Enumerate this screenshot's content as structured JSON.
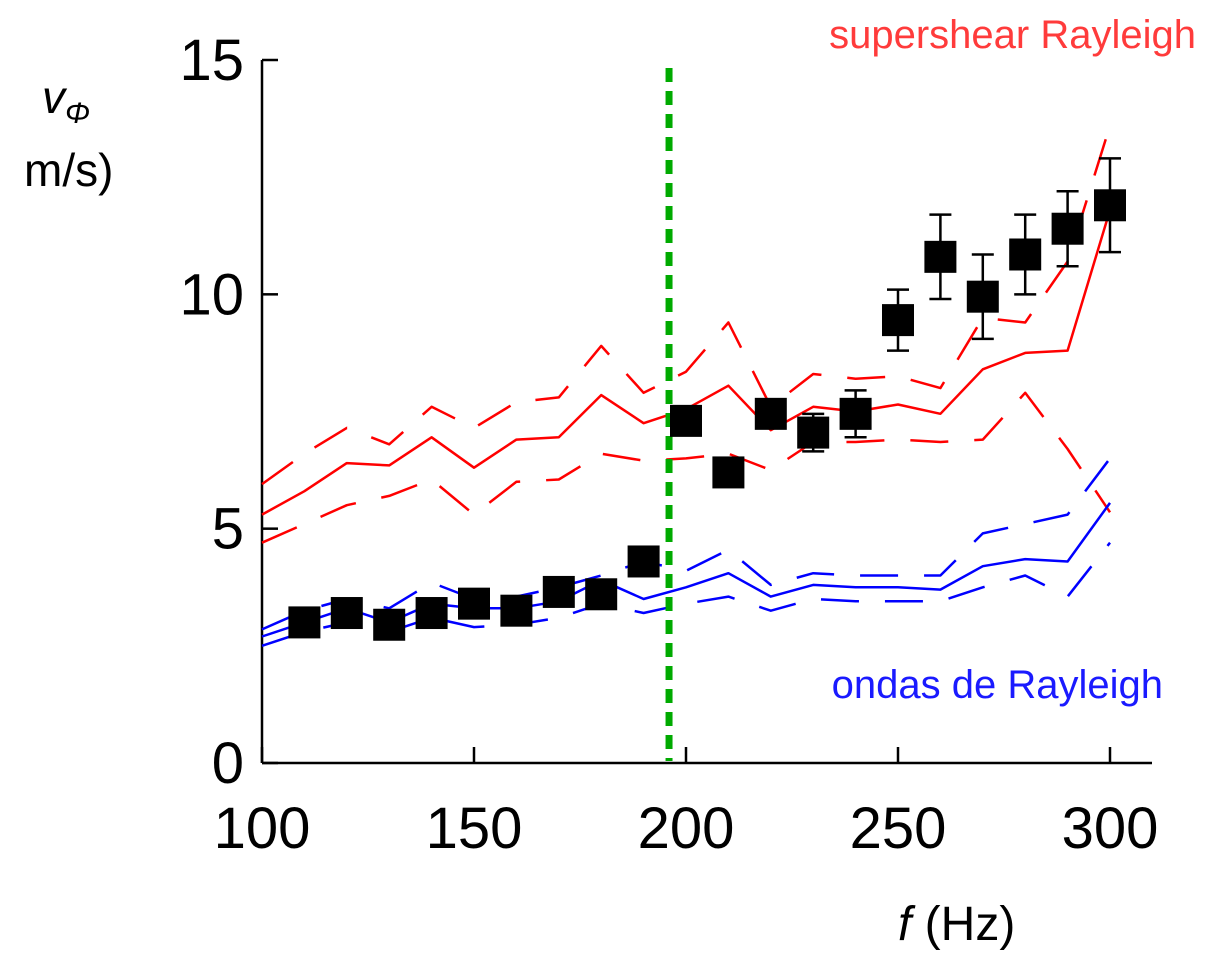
{
  "chart_data": {
    "type": "line",
    "ylabel_symbol": "v",
    "ylabel_subscript": "Φ",
    "ylabel_unit": "m/s)",
    "xlabel_symbol": "f",
    "xlabel_unit": " (Hz)",
    "xlim": [
      100,
      300
    ],
    "ylim": [
      0,
      15
    ],
    "xticks": [
      100,
      150,
      200,
      250,
      300
    ],
    "yticks": [
      0,
      5,
      10,
      15
    ],
    "annotations": {
      "red": "supershear Rayleigh",
      "blue": "ondas de Rayleigh"
    },
    "colors": {
      "red": "#ff0000",
      "blue": "#0000ff",
      "green": "#00aa00",
      "annot_red": "#ff3b3b",
      "annot_blue": "#1a1aff",
      "markers": "#000000"
    },
    "vline_x": 196,
    "markers": {
      "x": [
        110,
        120,
        130,
        140,
        150,
        160,
        170,
        180,
        190,
        200,
        210,
        220,
        230,
        240,
        250,
        260,
        270,
        280,
        290,
        300
      ],
      "y": [
        3.0,
        3.2,
        2.95,
        3.2,
        3.4,
        3.25,
        3.65,
        3.6,
        4.3,
        7.3,
        6.2,
        7.45,
        7.05,
        7.45,
        9.45,
        10.8,
        9.95,
        10.85,
        11.4,
        11.9
      ],
      "err": [
        null,
        null,
        null,
        null,
        null,
        null,
        null,
        null,
        null,
        null,
        null,
        null,
        0.4,
        0.5,
        0.65,
        0.9,
        0.9,
        0.85,
        0.8,
        1.0
      ]
    },
    "series": [
      {
        "color": "red",
        "dash": false,
        "x": [
          100,
          110,
          120,
          130,
          140,
          150,
          160,
          170,
          180,
          190,
          200,
          210,
          220,
          230,
          240,
          250,
          260,
          270,
          280,
          290,
          300
        ],
        "y": [
          5.3,
          5.8,
          6.4,
          6.35,
          6.95,
          6.3,
          6.9,
          6.95,
          7.85,
          7.25,
          7.55,
          8.05,
          7.1,
          7.6,
          7.5,
          7.65,
          7.45,
          8.4,
          8.75,
          8.8,
          11.8
        ]
      },
      {
        "color": "red",
        "dash": true,
        "x": [
          100,
          110,
          120,
          130,
          140,
          150,
          160,
          170,
          180,
          190,
          200,
          210,
          220,
          230,
          240,
          250,
          260,
          270,
          280,
          290,
          300
        ],
        "y": [
          5.95,
          6.6,
          7.15,
          6.8,
          7.6,
          7.15,
          7.7,
          7.8,
          8.9,
          7.9,
          8.35,
          9.4,
          7.6,
          8.3,
          8.2,
          8.25,
          8.0,
          9.5,
          9.4,
          10.7,
          13.6
        ]
      },
      {
        "color": "red",
        "dash": true,
        "x": [
          100,
          110,
          120,
          130,
          140,
          150,
          160,
          170,
          180,
          190,
          200,
          210,
          220,
          230,
          240,
          250,
          260,
          270,
          280,
          290,
          300
        ],
        "y": [
          4.7,
          5.1,
          5.5,
          5.7,
          6.05,
          5.3,
          6.0,
          6.05,
          6.6,
          6.45,
          6.5,
          6.6,
          6.25,
          6.85,
          6.85,
          6.9,
          6.85,
          6.9,
          7.9,
          6.7,
          5.35
        ]
      },
      {
        "color": "blue",
        "dash": false,
        "x": [
          100,
          110,
          120,
          130,
          140,
          150,
          160,
          170,
          180,
          190,
          200,
          210,
          220,
          230,
          240,
          250,
          260,
          270,
          280,
          290,
          300
        ],
        "y": [
          2.7,
          3.0,
          3.3,
          3.0,
          3.4,
          3.3,
          3.3,
          3.45,
          3.9,
          3.5,
          3.75,
          4.05,
          3.55,
          3.8,
          3.75,
          3.75,
          3.7,
          4.2,
          4.35,
          4.3,
          5.55
        ]
      },
      {
        "color": "blue",
        "dash": true,
        "x": [
          100,
          110,
          120,
          130,
          140,
          150,
          160,
          170,
          180,
          190,
          200,
          210,
          220,
          230,
          240,
          250,
          260,
          270,
          280,
          290,
          300
        ],
        "y": [
          2.85,
          3.25,
          3.5,
          3.3,
          3.85,
          3.5,
          3.55,
          3.75,
          4.0,
          4.3,
          4.1,
          4.55,
          3.8,
          4.05,
          4.0,
          4.0,
          4.0,
          4.9,
          5.1,
          5.3,
          6.5
        ]
      },
      {
        "color": "blue",
        "dash": true,
        "x": [
          100,
          110,
          120,
          130,
          140,
          150,
          160,
          170,
          180,
          190,
          200,
          210,
          220,
          230,
          240,
          250,
          260,
          270,
          280,
          290,
          300
        ],
        "y": [
          2.5,
          2.8,
          3.0,
          2.8,
          3.1,
          2.9,
          2.95,
          3.1,
          3.4,
          3.2,
          3.4,
          3.55,
          3.25,
          3.5,
          3.45,
          3.45,
          3.45,
          3.75,
          4.0,
          3.55,
          4.7
        ]
      }
    ]
  }
}
